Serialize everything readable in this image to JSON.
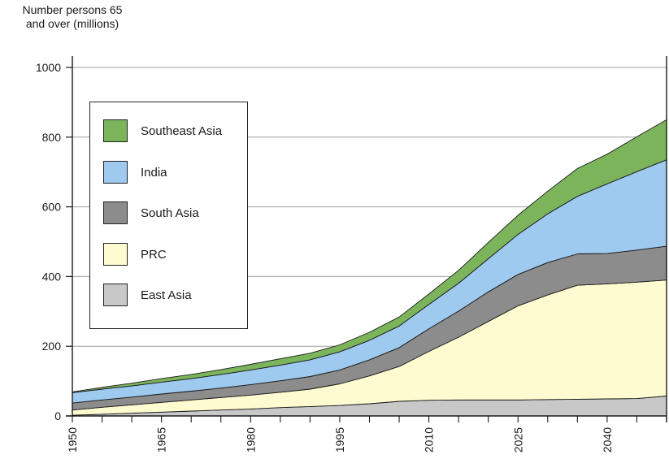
{
  "chart_data": {
    "type": "area",
    "stacked": true,
    "ylabel_lines": [
      "Number persons 65",
      "and over (millions)"
    ],
    "xlabel": "",
    "x": [
      1950,
      1955,
      1960,
      1965,
      1970,
      1975,
      1980,
      1985,
      1990,
      1995,
      2000,
      2005,
      2010,
      2015,
      2020,
      2025,
      2030,
      2035,
      2040,
      2045,
      2050
    ],
    "x_ticks": [
      "1950",
      "1965",
      "1980",
      "1995",
      "2010",
      "2025",
      "2040"
    ],
    "x_tick_values": [
      1950,
      1965,
      1980,
      1995,
      2010,
      2025,
      2040
    ],
    "xlim": [
      1950,
      2050
    ],
    "y_ticks": [
      "0",
      "200",
      "400",
      "600",
      "800",
      "1000"
    ],
    "ylim": [
      0,
      1000
    ],
    "grid": "horizontal",
    "legend_position": "upper-left",
    "series": [
      {
        "name": "East Asia",
        "color": "#c8c8c8",
        "values": [
          2,
          5,
          8,
          11,
          14,
          17,
          20,
          24,
          27,
          30,
          35,
          42,
          45,
          46,
          46,
          46,
          47,
          48,
          49,
          50,
          57
        ]
      },
      {
        "name": "PRC",
        "color": "#fffbd0",
        "values": [
          15,
          20,
          24,
          28,
          32,
          36,
          40,
          44,
          50,
          62,
          80,
          100,
          140,
          180,
          225,
          270,
          300,
          327,
          330,
          334,
          333
        ]
      },
      {
        "name": "South Asia",
        "color": "#8c8c8c",
        "values": [
          20,
          21,
          22,
          24,
          25,
          27,
          30,
          33,
          36,
          40,
          46,
          54,
          65,
          75,
          85,
          90,
          93,
          90,
          87,
          92,
          97
        ]
      },
      {
        "name": "India",
        "color": "#9ecaf0",
        "values": [
          30,
          31,
          32,
          34,
          36,
          39,
          42,
          45,
          48,
          52,
          56,
          62,
          70,
          80,
          95,
          115,
          140,
          165,
          200,
          225,
          248
        ]
      },
      {
        "name": "Southeast Asia",
        "color": "#7cb45c",
        "values": [
          2,
          5,
          8,
          10,
          12,
          14,
          16,
          18,
          19,
          20,
          23,
          26,
          30,
          37,
          47,
          55,
          65,
          80,
          85,
          100,
          115
        ]
      }
    ],
    "legend_order": [
      "Southeast Asia",
      "India",
      "South Asia",
      "PRC",
      "East Asia"
    ]
  }
}
